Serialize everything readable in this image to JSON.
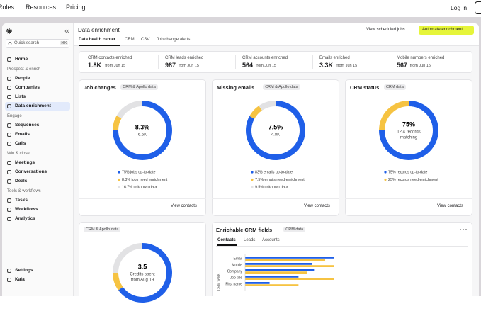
{
  "top_nav": {
    "links": [
      "Roles",
      "Resources",
      "Pricing"
    ],
    "login": "Log in"
  },
  "sidebar": {
    "search": "Quick search",
    "shortcut": "⌘K",
    "home": "Home",
    "sections": [
      {
        "title": "Prospect & enrich",
        "items": [
          "People",
          "Companies",
          "Lists",
          "Data enrichment"
        ]
      },
      {
        "title": "Engage",
        "items": [
          "Sequences",
          "Emails",
          "Calls"
        ]
      },
      {
        "title": "Win & close",
        "items": [
          "Meetings",
          "Conversations",
          "Deals"
        ]
      },
      {
        "title": "Tools & workflows",
        "items": [
          "Tasks",
          "Workflows",
          "Analytics"
        ]
      }
    ],
    "footer": [
      "Settings",
      "Kala"
    ]
  },
  "header": {
    "title": "Data enrichment",
    "tabs": [
      "Data health center",
      "CRM",
      "CSV",
      "Job change alerts"
    ],
    "scheduled": "View scheduled jobs",
    "automate": "Automate enrichment"
  },
  "stats": [
    {
      "label": "CRM contacts enriched",
      "value": "1.8K",
      "since": "from Jun 15"
    },
    {
      "label": "CRM leads enriched",
      "value": "987",
      "since": "from Jun 15"
    },
    {
      "label": "CRM accounts enriched",
      "value": "564",
      "since": "from Jun 15"
    },
    {
      "label": "Emails enriched",
      "value": "3.3K",
      "since": "from Jun 15"
    },
    {
      "label": "Mobile numbers enriched",
      "value": "567",
      "since": "from Jun 15"
    }
  ],
  "donut_cards": [
    {
      "title": "Job changes",
      "tag": "CRM & Apollo data",
      "center": "8.3%",
      "center_sub": [
        "6.6K"
      ],
      "segments": [
        {
          "value": 75,
          "label": "75% jobs up-to-date",
          "color": "#1f5fe8"
        },
        {
          "value": 8.3,
          "label": "8.3% jobs need enrichment",
          "color": "#f6c342"
        },
        {
          "value": 16.7,
          "label": "16.7% unknown data",
          "color": "#e2e2e4"
        }
      ],
      "link": "View contacts"
    },
    {
      "title": "Missing emails",
      "tag": "CRM & Apollo data",
      "center": "7.5%",
      "center_sub": [
        "4.8K"
      ],
      "segments": [
        {
          "value": 83,
          "label": "83% emails up-to-date",
          "color": "#1f5fe8"
        },
        {
          "value": 7.5,
          "label": "7.5% emails need enrichment",
          "color": "#f6c342"
        },
        {
          "value": 9.5,
          "label": "9.5% unknown data",
          "color": "#e2e2e4"
        }
      ],
      "link": "View contacts"
    },
    {
      "title": "CRM status",
      "tag": "CRM data",
      "center": "75%",
      "center_sub": [
        "12.4 records",
        "matching"
      ],
      "segments": [
        {
          "value": 75,
          "label": "75% records up-to-date",
          "color": "#1f5fe8"
        },
        {
          "value": 25,
          "label": "25% records need enrichment",
          "color": "#f6c342"
        }
      ],
      "link": "View contacts"
    },
    {
      "tag": "CRM & Apollo data",
      "center": "3.5",
      "center_sub": [
        "Credits spent",
        "from Aug 19"
      ],
      "segments": [
        {
          "value": 65,
          "color": "#1f5fe8"
        },
        {
          "value": 10,
          "color": "#f6c342"
        },
        {
          "value": 25,
          "color": "#e2e2e4"
        }
      ]
    }
  ],
  "bar_card": {
    "title": "Enrichable CRM fields",
    "tag": "CRM data",
    "tabs": [
      "Contacts",
      "Leads",
      "Accounts"
    ],
    "chart_data": {
      "type": "bar",
      "orientation": "horizontal",
      "y_label": "CRM fields",
      "categories": [
        "Email",
        "Mobile",
        "Company",
        "Job title",
        "First name"
      ],
      "series": [
        {
          "color": "#1f5fe8",
          "values": [
            40,
            30,
            31,
            24,
            11
          ]
        },
        {
          "color": "#f6c342",
          "values": [
            36,
            40,
            28,
            40,
            24
          ]
        }
      ],
      "xlim": [
        0,
        100
      ]
    }
  }
}
